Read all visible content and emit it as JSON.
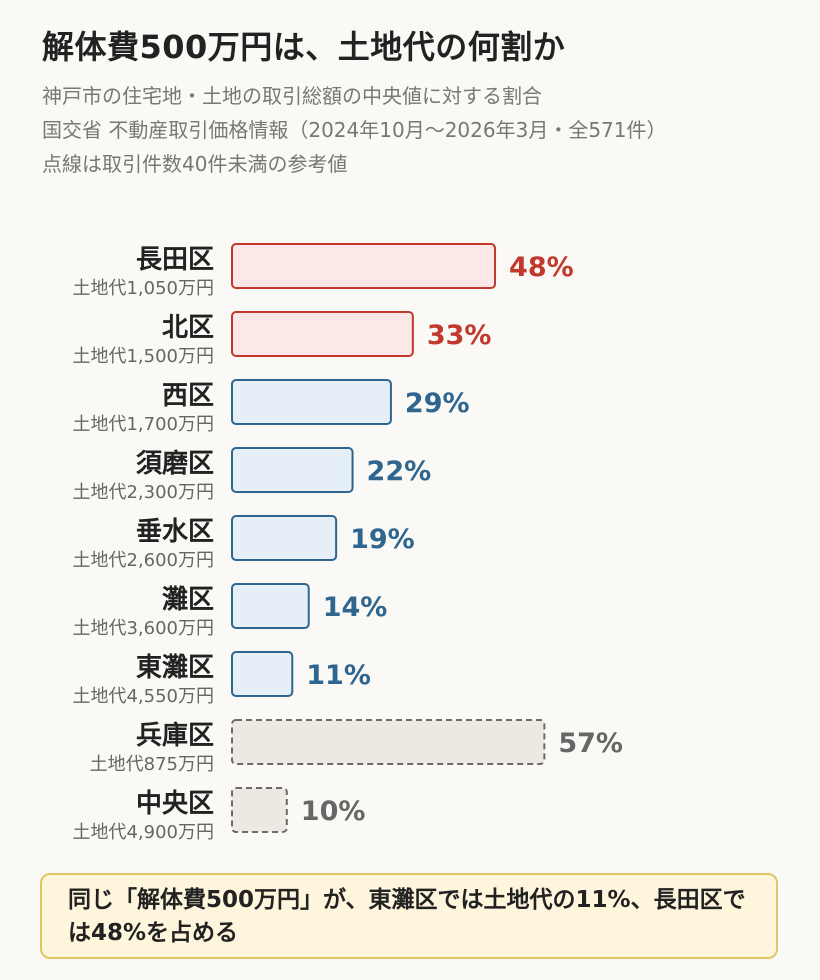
{
  "header": {
    "title": "解体費500万円は、土地代の何割か",
    "subtitle_lines": [
      "神戸市の住宅地・土地の取引総額の中央値に対する割合",
      "国交省 不動産取引価格情報（2024年10月〜2026年3月・全571件）",
      "点線は取引件数40件未満の参考値"
    ]
  },
  "colors": {
    "red_fill": "#fde8e8",
    "red_stroke": "#c0392b",
    "red_text": "#c0392b",
    "blue_fill": "#e6eff8",
    "blue_stroke": "#2f6690",
    "blue_text": "#2f6690",
    "gray_fill": "#ede8e2",
    "gray_stroke": "#6a6a6a",
    "gray_text": "#666666"
  },
  "chart_data": {
    "type": "bar",
    "orientation": "horizontal",
    "xlim": [
      0,
      100
    ],
    "categories": [
      "長田区",
      "北区",
      "西区",
      "須磨区",
      "垂水区",
      "灘区",
      "東灘区",
      "兵庫区",
      "中央区"
    ],
    "sublabels": [
      "土地代1,050万円",
      "土地代1,500万円",
      "土地代1,700万円",
      "土地代2,300万円",
      "土地代2,600万円",
      "土地代3,600万円",
      "土地代4,550万円",
      "土地代875万円",
      "土地代4,900万円"
    ],
    "values": [
      48,
      33,
      29,
      22,
      19,
      14,
      11,
      57,
      10
    ],
    "value_labels": [
      "48%",
      "33%",
      "29%",
      "22%",
      "19%",
      "14%",
      "11%",
      "57%",
      "10%"
    ],
    "styles": [
      "red",
      "red",
      "blue",
      "blue",
      "blue",
      "blue",
      "blue",
      "gray",
      "gray"
    ],
    "dashed": [
      false,
      false,
      false,
      false,
      false,
      false,
      false,
      true,
      true
    ]
  },
  "callout": {
    "text": "同じ「解体費500万円」が、東灘区では土地代の11%、長田区では48%を占める"
  }
}
